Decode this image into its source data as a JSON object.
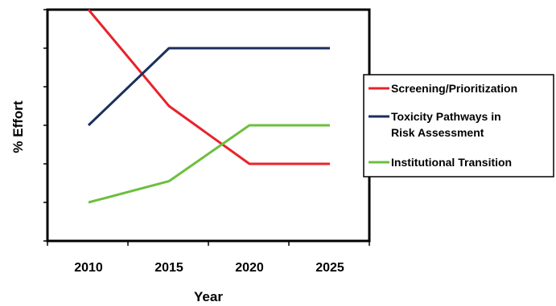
{
  "chart_data": {
    "type": "line",
    "title": "",
    "xlabel": "Year",
    "ylabel": "% Effort",
    "categories": [
      "2010",
      "2015",
      "2020",
      "2025"
    ],
    "ylim": [
      0,
      6
    ],
    "y_ticks_labeled": false,
    "grid": false,
    "legend_position": "right",
    "series": [
      {
        "name": "Screening/Prioritization",
        "color": "#e8232a",
        "values": [
          6.0,
          3.5,
          2.0,
          2.0
        ]
      },
      {
        "name": "Toxicity Pathways in Risk Assessment",
        "name_lines": [
          "Toxicity Pathways in",
          "Risk Assessment"
        ],
        "color": "#1b2f5e",
        "values": [
          3.0,
          5.0,
          5.0,
          5.0
        ]
      },
      {
        "name": "Institutional Transition",
        "color": "#6cbf3e",
        "values": [
          1.0,
          1.55,
          3.0,
          3.0
        ]
      }
    ]
  }
}
